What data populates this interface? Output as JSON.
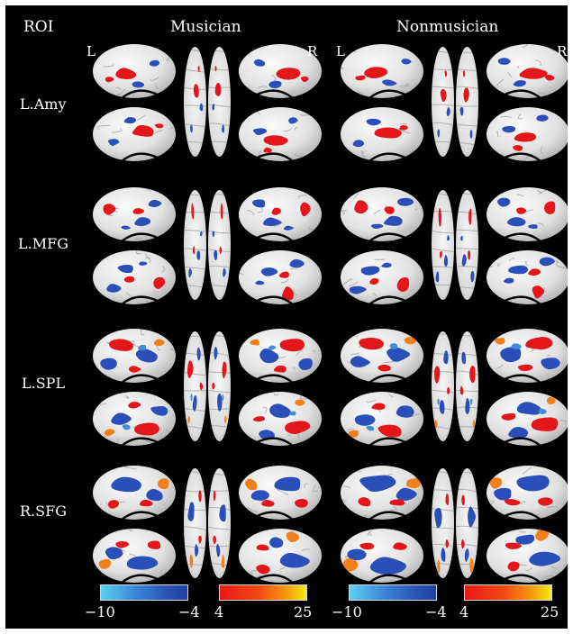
{
  "header": {
    "roi_label": "ROI",
    "group_1": "Musician",
    "group_2": "Nonmusician",
    "left_marker": "L",
    "right_marker": "R"
  },
  "rows": [
    {
      "roi": "L.Amy"
    },
    {
      "roi": "L.MFG"
    },
    {
      "roi": "L.SPL"
    },
    {
      "roi": "R.SFG"
    }
  ],
  "colorbars": {
    "negative": {
      "min": "−10",
      "max": "−4"
    },
    "positive": {
      "min": "4",
      "max": "25"
    }
  },
  "colors": {
    "background": "#000000",
    "negative_scale": [
      "#5ed0ef",
      "#3a86d8",
      "#1f3fa0"
    ],
    "positive_scale": [
      "#e81818",
      "#f5a20e",
      "#f0ee1c"
    ],
    "cortex": "#e6e6e6"
  }
}
